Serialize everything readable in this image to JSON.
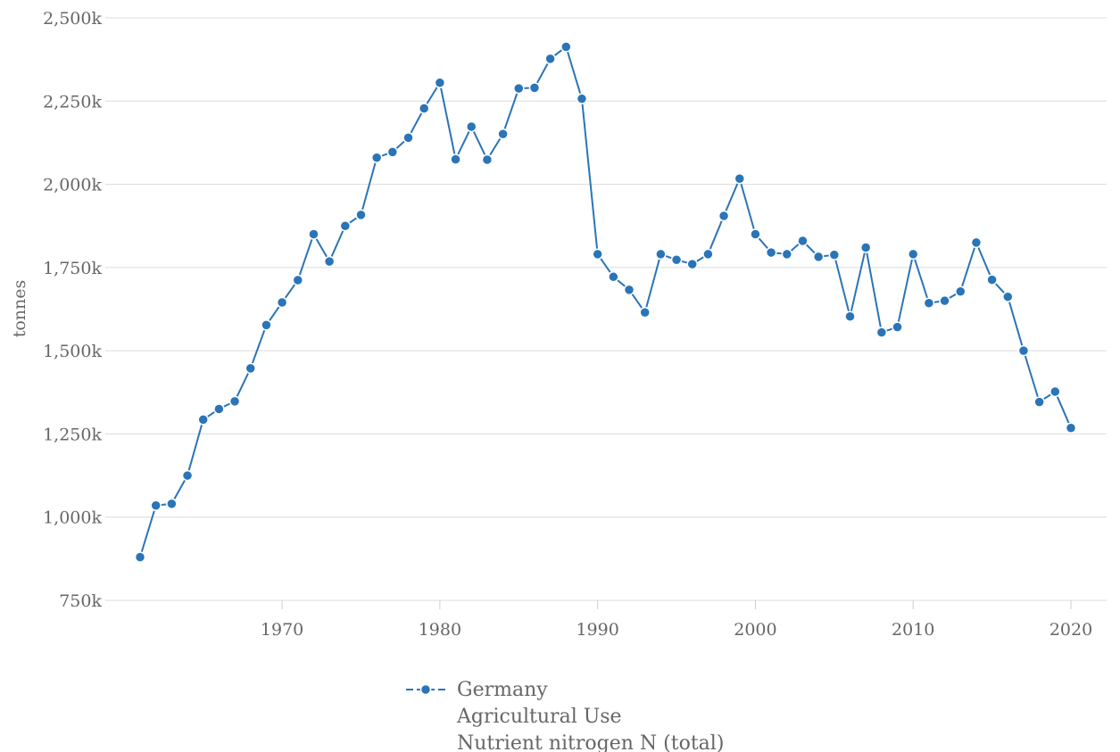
{
  "chart_data": {
    "type": "line",
    "title": "",
    "xlabel": "",
    "ylabel": "tonnes",
    "ylim": [
      750000,
      2500000
    ],
    "xlim": [
      1961,
      2020
    ],
    "y_ticks": [
      750000,
      1000000,
      1250000,
      1500000,
      1750000,
      2000000,
      2250000,
      2500000
    ],
    "y_tick_labels": [
      "750k",
      "1,000k",
      "1,250k",
      "1,500k",
      "1,750k",
      "2,000k",
      "2,250k",
      "2,500k"
    ],
    "x_ticks": [
      1970,
      1980,
      1990,
      2000,
      2010,
      2020
    ],
    "x_tick_labels": [
      "1970",
      "1980",
      "1990",
      "2000",
      "2010",
      "2020"
    ],
    "grid": "horizontal",
    "legend_position": "bottom",
    "series": [
      {
        "name": "Germany",
        "legend_lines": [
          "Germany",
          "Agricultural Use",
          "Nutrient nitrogen N (total)"
        ],
        "color": "#2a74b8",
        "x": [
          1961,
          1962,
          1963,
          1964,
          1965,
          1966,
          1967,
          1968,
          1969,
          1970,
          1971,
          1972,
          1973,
          1974,
          1975,
          1976,
          1977,
          1978,
          1979,
          1980,
          1981,
          1982,
          1983,
          1984,
          1985,
          1986,
          1987,
          1988,
          1989,
          1990,
          1991,
          1992,
          1993,
          1994,
          1995,
          1996,
          1997,
          1998,
          1999,
          2000,
          2001,
          2002,
          2003,
          2004,
          2005,
          2006,
          2007,
          2008,
          2009,
          2010,
          2011,
          2012,
          2013,
          2014,
          2015,
          2016,
          2017,
          2018,
          2019,
          2020
        ],
        "y": [
          880000,
          1035000,
          1040000,
          1125000,
          1293000,
          1325000,
          1348000,
          1447000,
          1577000,
          1645000,
          1712000,
          1850000,
          1768000,
          1875000,
          1908000,
          2080000,
          2097000,
          2140000,
          2228000,
          2305000,
          2075000,
          2173000,
          2074000,
          2151000,
          2288000,
          2290000,
          2377000,
          2413000,
          2257000,
          1790000,
          1722000,
          1683000,
          1615000,
          1790000,
          1773000,
          1760000,
          1790000,
          1905000,
          2017000,
          1850000,
          1795000,
          1790000,
          1830000,
          1782000,
          1788000,
          1603000,
          1810000,
          1555000,
          1571000,
          1790000,
          1643000,
          1650000,
          1678000,
          1825000,
          1713000,
          1662000,
          1500000,
          1346000,
          1377000,
          1268000
        ]
      }
    ]
  }
}
